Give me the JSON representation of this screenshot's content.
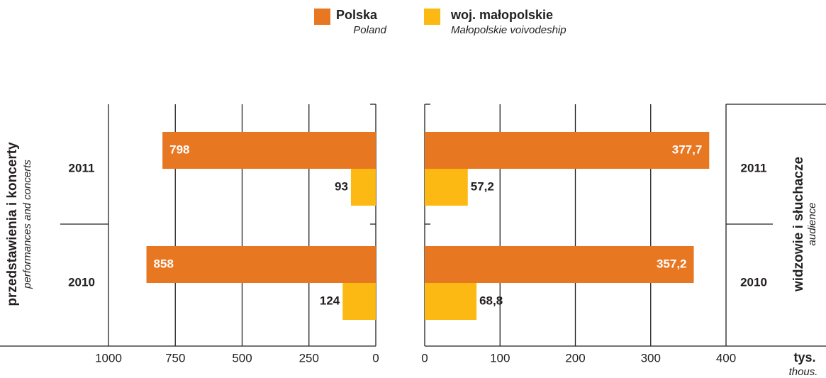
{
  "chart_data": [
    {
      "type": "bar",
      "orientation": "horizontal",
      "ylabel": "przedstawienia i koncerty",
      "ylabel_translation": "performances and concerts",
      "categories": [
        "2011",
        "2010"
      ],
      "series": [
        {
          "name": "Polska",
          "name_translation": "Poland",
          "color": "#e87722",
          "values": [
            798,
            858
          ]
        },
        {
          "name": "woj. małopolskie",
          "name_translation": "Małopolskie voivodeship",
          "color": "#fdb913",
          "values": [
            93,
            124
          ]
        }
      ],
      "xlim": [
        1000,
        0
      ],
      "xticks": [
        1000,
        750,
        500,
        250,
        0
      ],
      "grid": true
    },
    {
      "type": "bar",
      "orientation": "horizontal",
      "ylabel": "widzowie i słuchacze",
      "ylabel_translation": "audience",
      "xlabel": "tys.",
      "xlabel_translation": "thous.",
      "categories": [
        "2011",
        "2010"
      ],
      "series": [
        {
          "color": "#e87722",
          "values": [
            377.7,
            357.2
          ],
          "value_labels": [
            "377,7",
            "357,2"
          ]
        },
        {
          "color": "#fdb913",
          "values": [
            57.2,
            68.8
          ],
          "value_labels": [
            "57,2",
            "68,8"
          ]
        }
      ],
      "xlim": [
        0,
        400
      ],
      "xticks": [
        0,
        100,
        200,
        300,
        400
      ],
      "grid": true
    }
  ]
}
